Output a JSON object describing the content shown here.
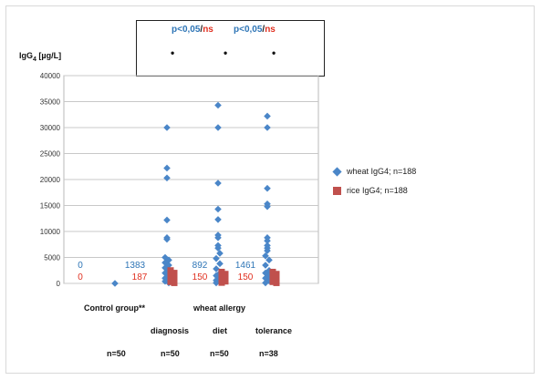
{
  "significance": {
    "p_label": "p<0,05",
    "slash": "/",
    "ns_label": "ns",
    "markers": [
      "•",
      "•",
      "•"
    ]
  },
  "chart_data": {
    "type": "scatter",
    "ylabel_text": "IgG",
    "ylabel_sub": "4",
    "ylabel_unit": " [µg/L]",
    "ylim": [
      0,
      40000
    ],
    "yticks": [
      "0",
      "5000",
      "10000",
      "15000",
      "20000",
      "25000",
      "30000",
      "35000",
      "40000"
    ],
    "grid": true,
    "legend_position": "right",
    "groups": [
      {
        "label": "Control group**",
        "n_label": "n=50",
        "wheat_median": "0",
        "rice_median": "0"
      },
      {
        "label": "diagnosis",
        "n_label": "n=50",
        "wheat_median": "1383",
        "rice_median": "187"
      },
      {
        "label": "diet",
        "n_label": "n=50",
        "wheat_median": "892",
        "rice_median": "150"
      },
      {
        "label": "tolerance",
        "n_label": "n=38",
        "wheat_median": "1461",
        "rice_median": "150"
      }
    ],
    "super_label": "wheat allergy",
    "series": [
      {
        "name": "wheat IgG4; n=188",
        "color": "#4a86c8",
        "marker": "diamond",
        "points_by_group": [
          [
            0
          ],
          [
            30000,
            22200,
            20300,
            12200,
            8800,
            8500,
            5000,
            4500,
            4000,
            3500,
            3000,
            2500,
            2000,
            1500,
            1000,
            700,
            400,
            100
          ],
          [
            34300,
            30000,
            19300,
            14300,
            12300,
            9300,
            8800,
            7300,
            6800,
            5800,
            4800,
            3800,
            2800,
            2000,
            1500,
            1000,
            600,
            300,
            100
          ],
          [
            32200,
            30000,
            18300,
            15300,
            14800,
            8800,
            8200,
            7300,
            6800,
            6300,
            5300,
            4500,
            3500,
            2500,
            2000,
            1500,
            1000,
            500,
            100
          ]
        ]
      },
      {
        "name": "rice IgG4; n=188",
        "color": "#c0504d",
        "marker": "square",
        "points_by_group": [
          [],
          [
            2500,
            2000,
            1600,
            1200,
            900,
            600,
            300,
            100
          ],
          [
            2200,
            1800,
            1400,
            1000,
            700,
            400,
            150
          ],
          [
            2200,
            1800,
            1500,
            1200,
            900,
            600,
            300,
            100
          ]
        ]
      }
    ]
  }
}
